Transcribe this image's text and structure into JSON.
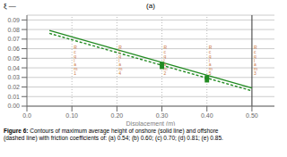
{
  "chart_data": {
    "type": "line",
    "title": "(a)",
    "x_label": "Displacement (m)",
    "y_label": "ξ —",
    "xlim": [
      0.0,
      0.55
    ],
    "ylim": [
      0.0,
      0.095
    ],
    "xticks": [
      {
        "value": 0.0,
        "label": "0.0"
      },
      {
        "value": 0.1,
        "label": "0.10"
      },
      {
        "value": 0.2,
        "label": "0.20"
      },
      {
        "value": 0.3,
        "label": "0.30"
      },
      {
        "value": 0.4,
        "label": "0.40"
      },
      {
        "value": 0.5,
        "label": "0.50"
      }
    ],
    "yticks": [
      {
        "value": 0.0,
        "label": "0.00"
      },
      {
        "value": 0.01,
        "label": "0.01"
      },
      {
        "value": 0.02,
        "label": "0.02"
      },
      {
        "value": 0.03,
        "label": "0.03"
      },
      {
        "value": 0.04,
        "label": "0.04"
      },
      {
        "value": 0.05,
        "label": "0.05"
      },
      {
        "value": 0.06,
        "label": "0.06"
      },
      {
        "value": 0.07,
        "label": "0.07"
      },
      {
        "value": 0.08,
        "label": "0.08"
      },
      {
        "value": 0.09,
        "label": "0.09"
      }
    ],
    "grid": true,
    "series": [
      {
        "x": [
          0.05,
          0.5
        ],
        "values": [
          0.079,
          0.019
        ],
        "color": "#228B22",
        "line_style": "solid"
      },
      {
        "x": [
          0.05,
          0.5
        ],
        "values": [
          0.076,
          0.016
        ],
        "color": "#228B22",
        "line_style": "dashed"
      },
      {
        "type": "scatter",
        "x": [
          0.3,
          0.4
        ],
        "values": [
          0.044,
          0.03
        ],
        "color": "#228B22",
        "marker": "square"
      },
      {
        "type": "scatter",
        "x": [
          0.3,
          0.4
        ],
        "values": [
          0.041,
          0.027
        ],
        "color": "#228B22",
        "marker": "square"
      }
    ],
    "reference_lines": [
      {
        "x": 0.1,
        "line_style": "dotted",
        "color": "#aaaaaa"
      },
      {
        "x": 0.2,
        "line_style": "dotted",
        "color": "#aaaaaa"
      },
      {
        "x": 0.3,
        "line_style": "dotted",
        "color": "#aaaaaa"
      },
      {
        "x": 0.4,
        "line_style": "dotted",
        "color": "#aaaaaa"
      },
      {
        "x": 0.5,
        "line_style": "solid",
        "color": "#333333"
      }
    ],
    "annotations": [
      {
        "x": 0.1,
        "y": 0.063,
        "text": "R\nc\nq\nl\na\nm\n1",
        "color": "#cc7744"
      },
      {
        "x": 0.2,
        "y": 0.063,
        "text": "R\nc\nq\nl\na\nm\n4",
        "color": "#cc7744"
      },
      {
        "x": 0.3,
        "y": 0.063,
        "text": "R\nc\nq\nl\na\nm\n2",
        "color": "#cc7744"
      },
      {
        "x": 0.4,
        "y": 0.063,
        "text": "R\nc\nq\nl\na\nm\n5",
        "color": "#cc7744"
      },
      {
        "x": 0.5,
        "y": 0.063,
        "text": "R\nc\nq\nl\na\nm\n3",
        "color": "#cc7744"
      }
    ],
    "caption_label": "Figure 6:",
    "caption": " Contours of maximum average height of onshore (solid line) and offshore\n(dashed line) with friction coefficients of: (a) 0.54; (b) 0.60; (c) 0.70; (d) 0.81; (e) 0.85."
  }
}
